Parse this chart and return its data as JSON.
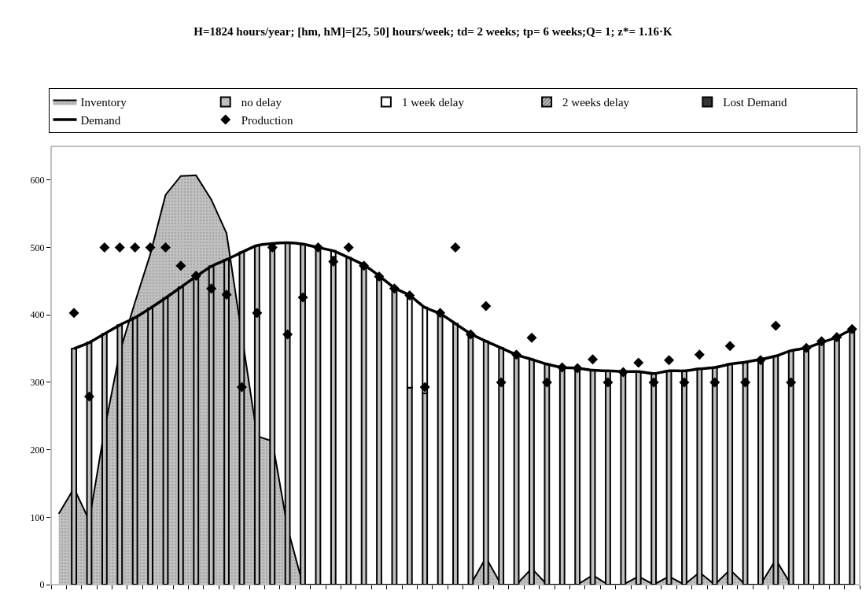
{
  "chart_data": {
    "type": "bar",
    "title": "H=1824 hours/year; [hm, hM]=[25, 50] hours/week; td= 2 weeks; tp= 6 weeks;Q= 1; z*= 1.16·K",
    "categories": [
      null,
      null,
      null,
      null,
      null,
      null,
      null,
      null,
      null,
      null,
      null,
      null,
      null,
      null,
      null,
      null,
      null,
      null,
      null,
      null,
      null,
      null,
      null,
      null,
      null,
      null,
      null,
      null,
      null,
      null,
      null,
      null,
      null,
      null,
      null,
      null,
      null,
      null,
      null,
      null,
      null,
      null,
      null,
      null,
      null,
      null,
      null,
      null,
      null,
      null,
      null,
      null,
      null
    ],
    "ylim": [
      0,
      650
    ],
    "yticks": [
      0,
      100,
      200,
      300,
      400,
      500,
      600
    ],
    "grid": false,
    "legend": "top",
    "tick_labels": "y",
    "series": [
      {
        "name": "Inventory",
        "type": "area",
        "color": "#c0c0c0",
        "values": [
          105,
          143,
          95,
          230,
          345,
          419,
          490,
          578,
          606,
          607,
          571,
          521,
          370,
          220,
          213,
          84,
          0,
          0,
          0,
          0,
          0,
          0,
          0,
          0,
          0,
          0,
          0,
          0,
          40,
          0,
          0,
          24,
          0,
          0,
          0,
          14,
          0,
          0,
          12,
          0,
          12,
          0,
          18,
          0,
          22,
          0,
          0,
          37,
          0,
          0,
          0,
          0,
          0
        ]
      },
      {
        "name": "no delay",
        "color": "#c0c0c0",
        "values": [
          null,
          350,
          359,
          372,
          385,
          396,
          410,
          425,
          441,
          457,
          472,
          482,
          493,
          503,
          506,
          507,
          505,
          500,
          486,
          485,
          474,
          458,
          440,
          292,
          284,
          402,
          387,
          372,
          361,
          351,
          341,
          334,
          327,
          322,
          321,
          318,
          317,
          316,
          316,
          313,
          317,
          317,
          320,
          322,
          327,
          330,
          334,
          339,
          347,
          351,
          359,
          367,
          379
        ]
      },
      {
        "name": "1 week delay",
        "color": "#ffffff",
        "base": [
          null,
          null,
          null,
          null,
          null,
          null,
          null,
          null,
          null,
          null,
          null,
          null,
          null,
          null,
          null,
          null,
          null,
          null,
          486,
          null,
          null,
          null,
          null,
          292,
          284,
          null,
          null,
          null,
          null,
          null,
          null,
          null,
          null,
          null,
          null,
          null,
          null,
          null,
          null,
          null,
          null,
          null,
          null,
          null,
          null,
          null,
          null,
          null,
          null,
          null,
          null,
          null,
          null
        ],
        "values": [
          null,
          null,
          null,
          null,
          null,
          null,
          null,
          null,
          null,
          null,
          null,
          null,
          null,
          null,
          null,
          null,
          null,
          null,
          9,
          null,
          null,
          null,
          null,
          137,
          127,
          null,
          null,
          null,
          null,
          null,
          null,
          null,
          null,
          null,
          null,
          null,
          null,
          null,
          null,
          null,
          null,
          null,
          null,
          null,
          null,
          null,
          null,
          null,
          null,
          null,
          null,
          null,
          null
        ]
      },
      {
        "name": "2 weeks delay",
        "color": "#000000",
        "values": [
          null,
          null,
          null,
          null,
          null,
          null,
          null,
          null,
          null,
          null,
          null,
          null,
          null,
          null,
          null,
          null,
          null,
          null,
          null,
          null,
          null,
          null,
          null,
          null,
          null,
          null,
          null,
          null,
          null,
          null,
          null,
          null,
          null,
          null,
          null,
          null,
          null,
          null,
          null,
          null,
          null,
          null,
          null,
          null,
          null,
          null,
          null,
          null,
          null,
          null,
          null,
          null,
          null
        ]
      },
      {
        "name": "Lost Demand",
        "color": "#333333",
        "values": [
          null,
          null,
          null,
          null,
          null,
          null,
          null,
          null,
          null,
          null,
          null,
          null,
          null,
          null,
          null,
          null,
          null,
          null,
          null,
          null,
          null,
          null,
          null,
          null,
          null,
          null,
          null,
          null,
          null,
          null,
          null,
          null,
          null,
          null,
          null,
          null,
          null,
          null,
          null,
          null,
          null,
          null,
          null,
          null,
          null,
          null,
          null,
          null,
          null,
          null,
          null,
          null,
          null
        ]
      },
      {
        "name": "Demand",
        "type": "line",
        "color": "#000000",
        "line_style": "solid",
        "marker": "none",
        "values": [
          null,
          350,
          359,
          372,
          385,
          396,
          410,
          425,
          441,
          457,
          472,
          482,
          493,
          503,
          506,
          507,
          505,
          500,
          495,
          485,
          474,
          458,
          440,
          429,
          411,
          402,
          387,
          372,
          361,
          351,
          341,
          334,
          327,
          322,
          321,
          318,
          317,
          316,
          316,
          313,
          317,
          317,
          320,
          322,
          327,
          330,
          334,
          339,
          347,
          351,
          359,
          367,
          379
        ]
      },
      {
        "name": "Production",
        "type": "scatter",
        "color": "#000000",
        "marker": "diamond",
        "values": [
          null,
          403,
          279,
          500,
          500,
          500,
          500,
          500,
          473,
          458,
          439,
          430,
          293,
          403,
          500,
          371,
          426,
          500,
          479,
          500,
          473,
          457,
          439,
          429,
          293,
          403,
          500,
          371,
          413,
          300,
          341,
          366,
          300,
          322,
          321,
          334,
          300,
          315,
          329,
          300,
          333,
          300,
          341,
          300,
          354,
          300,
          333,
          384,
          300,
          351,
          361,
          367,
          379
        ]
      }
    ]
  }
}
